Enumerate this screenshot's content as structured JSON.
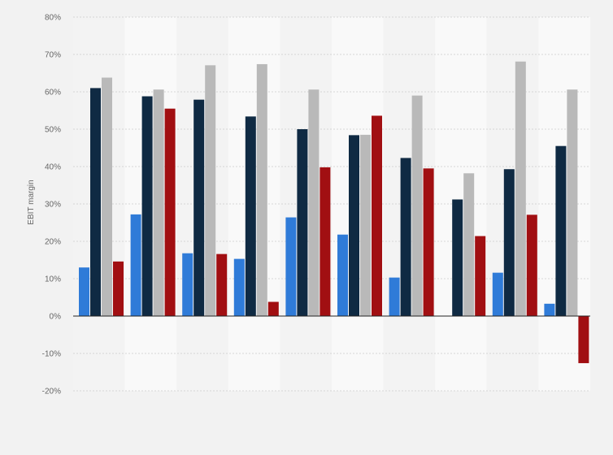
{
  "chart_data": {
    "type": "bar",
    "title": "",
    "xlabel": "",
    "ylabel": "EBIT margin",
    "ylim": [
      -20,
      80
    ],
    "y_ticks": [
      "-20%",
      "-10%",
      "0%",
      "10%",
      "20%",
      "30%",
      "40%",
      "50%",
      "60%",
      "70%",
      "80%"
    ],
    "categories": [
      "",
      "",
      "",
      "",
      "",
      "",
      "",
      "",
      "",
      ""
    ],
    "grid": true,
    "legend": "none",
    "series": [
      {
        "color": "#2f7bd8",
        "values": [
          13,
          27.2,
          16.8,
          15.3,
          26.4,
          21.8,
          10.3,
          0,
          11.6,
          3.3
        ]
      },
      {
        "color": "#0f2a43",
        "values": [
          61,
          58.8,
          57.9,
          53.4,
          50,
          48.4,
          42.3,
          31.2,
          39.3,
          45.5
        ]
      },
      {
        "color": "#b9b9b9",
        "values": [
          63.8,
          60.6,
          67.1,
          67.4,
          60.6,
          48.5,
          59,
          38.2,
          68.1,
          60.6
        ]
      },
      {
        "color": "#a10f12",
        "values": [
          14.6,
          55.5,
          16.6,
          3.8,
          39.8,
          53.6,
          39.5,
          21.4,
          27.1,
          -12.6
        ]
      }
    ]
  }
}
